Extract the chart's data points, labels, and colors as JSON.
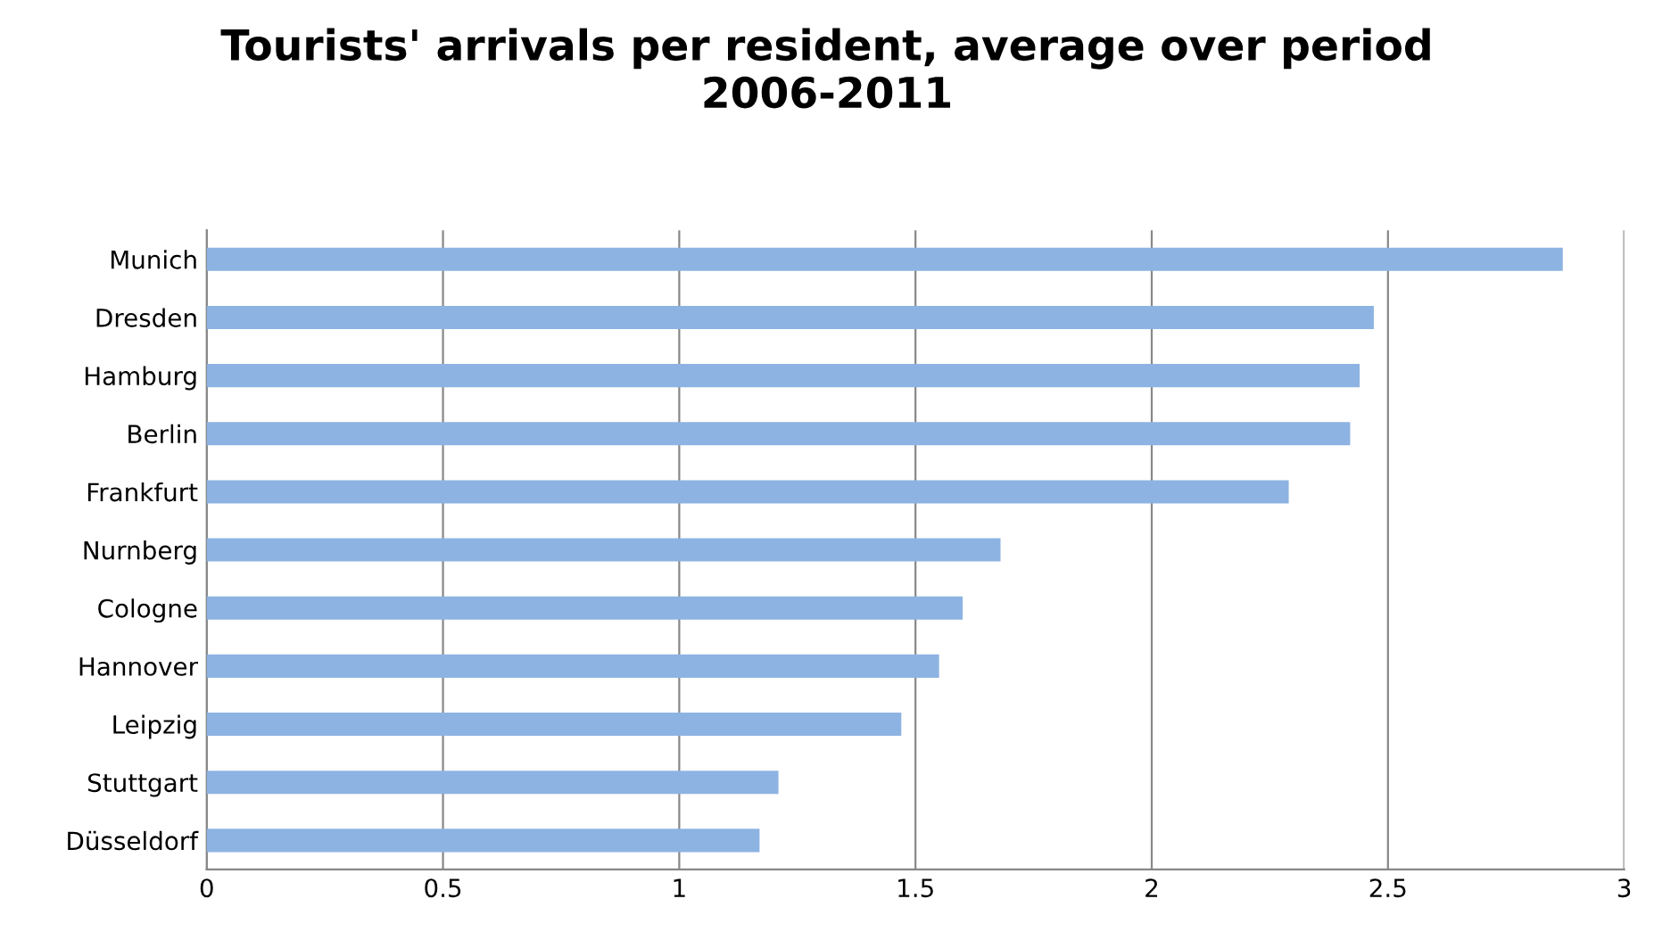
{
  "chart_data": {
    "type": "bar",
    "orientation": "horizontal",
    "title": "Tourists' arrivals per resident, average over period\n2006-2011",
    "categories": [
      "Munich",
      "Dresden",
      "Hamburg",
      "Berlin",
      "Frankfurt",
      "Nurnberg",
      "Cologne",
      "Hannover",
      "Leipzig",
      "Stuttgart",
      "Düsseldorf"
    ],
    "values": [
      2.87,
      2.47,
      2.44,
      2.42,
      2.29,
      1.68,
      1.6,
      1.55,
      1.47,
      1.21,
      1.17
    ],
    "color": "#8db3e2",
    "xlim": [
      0,
      3
    ],
    "xticks": [
      0,
      0.5,
      1,
      1.5,
      2,
      2.5,
      3
    ],
    "grid": "x"
  }
}
